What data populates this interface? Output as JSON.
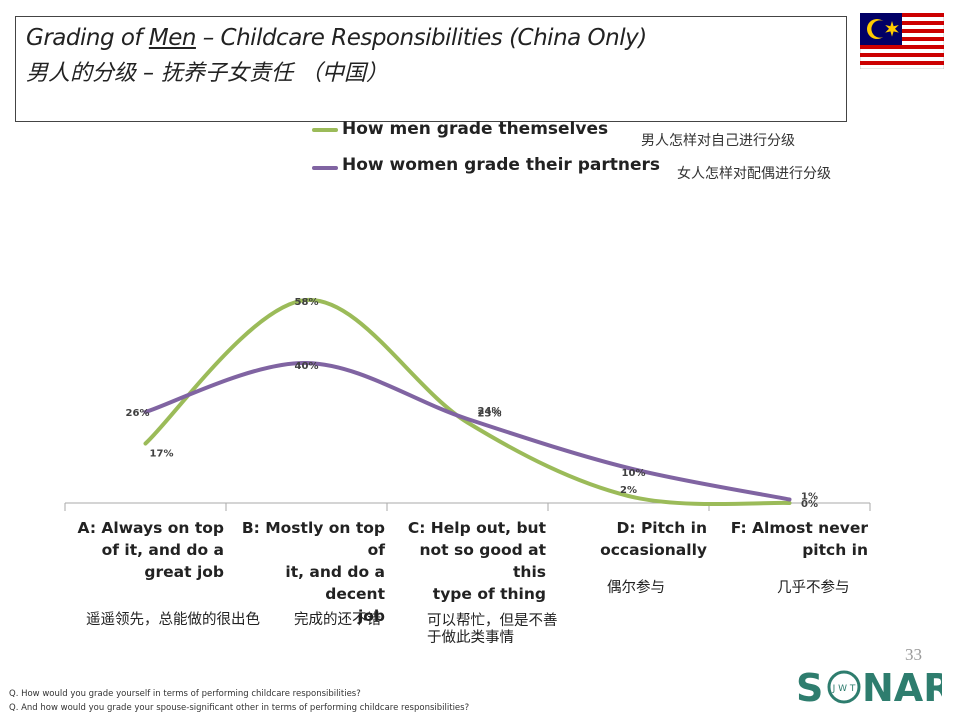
{
  "title": {
    "en_prefix": "Grading of ",
    "en_underlined": "Men",
    "en_suffix": " – Childcare Responsibilities (China Only)",
    "zh": "男人的分级 – 抚养子女责任 （中国）"
  },
  "colors": {
    "men": "#9bbb59",
    "women": "#8064a2",
    "axis": "#aaaaaa",
    "logo": "#2e7d6e"
  },
  "legend": [
    {
      "label": "How men grade themselves",
      "zh": "男人怎样对自己进行分级"
    },
    {
      "label": "How women grade their partners",
      "zh": "女人怎样对配偶进行分级"
    }
  ],
  "chart_data": {
    "type": "line",
    "smooth": true,
    "categories": [
      "A: Always on top of it, and do a great job",
      "B: Mostly on top of it, and do a decent job",
      "C: Help out, but not so good at this type of thing",
      "D: Pitch in occasionally",
      "F: Almost never pitch in"
    ],
    "categories_zh": [
      "遥遥领先，总能做的很出色",
      "完成的还不错",
      "可以帮忙，但是不善于做此类事情",
      "偶尔参与",
      "几乎不参与"
    ],
    "series": [
      {
        "name": "How men grade themselves",
        "values": [
          17,
          58,
          23,
          2,
          0
        ],
        "labels": [
          "17%",
          "58%",
          "23%",
          "2%",
          "0%"
        ]
      },
      {
        "name": "How women grade their partners",
        "values": [
          26,
          40,
          24,
          10,
          1
        ],
        "labels": [
          "26%",
          "40%",
          "24%",
          "10%",
          "1%"
        ]
      }
    ],
    "ylim": [
      0,
      70
    ],
    "grid": false,
    "legend_position": "top"
  },
  "category_lines": [
    [
      "A: Always on top",
      "of it, and do a",
      "great job"
    ],
    [
      "B: Mostly on top of",
      "it, and do a decent",
      "job"
    ],
    [
      "C: Help out, but",
      "not so good at this",
      "type of thing"
    ],
    [
      "D: Pitch in",
      "occasionally"
    ],
    [
      "F: Almost never",
      "pitch in"
    ]
  ],
  "category_zh_lines": [
    [
      "遥遥领先，总能做的很出色"
    ],
    [
      "完成的还不错"
    ],
    [
      "可以帮忙，但是不善",
      "于做此类事情"
    ],
    [
      "偶尔参与"
    ],
    [
      "几乎不参与"
    ]
  ],
  "page_number": "33",
  "footnotes": [
    "Q. How would you grade yourself in terms of performing childcare responsibilities?",
    "Q. And how would you grade your spouse-significant other in terms of performing childcare responsibilities?"
  ],
  "logo": {
    "text_left": "S",
    "text_right": "NAR",
    "inner": "J W T"
  }
}
